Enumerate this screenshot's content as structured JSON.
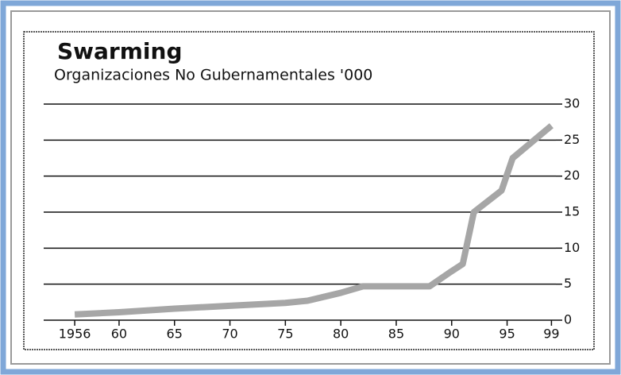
{
  "chart_data": {
    "type": "line",
    "title": "Swarming",
    "subtitle": "Organizaciones No Gubernamentales '000",
    "x": [
      1956,
      1960,
      1965,
      1970,
      1975,
      1977,
      1980,
      1982,
      1988,
      1990,
      1991,
      1992,
      1994.5,
      1995.5,
      1999
    ],
    "values": [
      0.8,
      1.1,
      1.6,
      2.0,
      2.4,
      2.7,
      3.8,
      4.7,
      4.7,
      6.8,
      7.8,
      15,
      18,
      22.5,
      27
    ],
    "color": "#a6a6a6",
    "xlim": [
      1953.2,
      1999.4
    ],
    "xticks": [
      1956,
      {
        "value": 1960,
        "label": "60"
      },
      {
        "value": 1965,
        "label": "65"
      },
      {
        "value": 1970,
        "label": "70"
      },
      {
        "value": 1975,
        "label": "75"
      },
      {
        "value": 1980,
        "label": "80"
      },
      {
        "value": 1985,
        "label": "85"
      },
      {
        "value": 1990,
        "label": "90"
      },
      {
        "value": 1995,
        "label": "95"
      },
      {
        "value": 1999,
        "label": "99"
      }
    ],
    "ylim": [
      0,
      30
    ],
    "yticks": [
      0,
      5,
      10,
      15,
      20,
      25,
      30
    ],
    "grid": true
  }
}
